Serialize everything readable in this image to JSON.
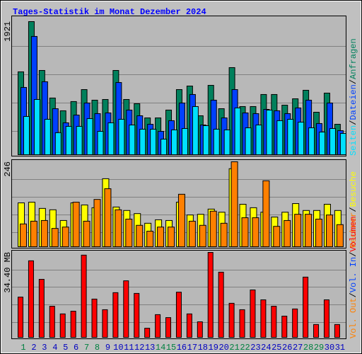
{
  "legend_separator": "/",
  "chart_data": [
    {
      "type": "bar",
      "title": "Tages-Statistik im Monat Dezember 2024",
      "ylim": [
        0,
        1921
      ],
      "yticks": [
        1921
      ],
      "series": [
        {
          "name": "Anfragen",
          "color": "#00805c",
          "values": [
            1196,
            1921,
            1216,
            818,
            634,
            767,
            940,
            787,
            797,
            1216,
            797,
            736,
            531,
            531,
            644,
            940,
            991,
            562,
            1001,
            664,
            1257,
            695,
            695,
            869,
            869,
            715,
            807,
            930,
            613,
            889,
            439
          ]
        },
        {
          "name": "Dateien",
          "color": "#0040ff",
          "values": [
            971,
            1707,
            1053,
            664,
            460,
            572,
            746,
            593,
            603,
            1042,
            644,
            562,
            439,
            337,
            491,
            746,
            869,
            429,
            787,
            531,
            940,
            603,
            593,
            654,
            634,
            593,
            675,
            787,
            450,
            746,
            347
          ]
        },
        {
          "name": "Seiten",
          "color": "#00e0ff",
          "values": [
            552,
            797,
            511,
            317,
            409,
            409,
            521,
            337,
            460,
            511,
            429,
            368,
            368,
            225,
            358,
            378,
            695,
            419,
            368,
            358,
            675,
            388,
            429,
            644,
            491,
            511,
            470,
            388,
            327,
            378,
            307
          ]
        }
      ]
    },
    {
      "type": "bar",
      "ylim": [
        0,
        246
      ],
      "yticks": [
        246
      ],
      "series": [
        {
          "name": "Besuche",
          "color": "#ffff00",
          "values": [
            127,
            129,
            111,
            107,
            76,
            127,
            121,
            113,
            197,
            115,
            105,
            96,
            68,
            78,
            76,
            129,
            92,
            94,
            109,
            100,
            226,
            123,
            113,
            100,
            86,
            100,
            125,
            105,
            105,
            123,
            105
          ]
        },
        {
          "name": "Rechner",
          "color": "#ff8000",
          "values": [
            66,
            74,
            76,
            53,
            57,
            129,
            74,
            137,
            168,
            107,
            80,
            62,
            45,
            57,
            57,
            152,
            74,
            62,
            103,
            68,
            246,
            84,
            84,
            191,
            59,
            76,
            94,
            94,
            80,
            92,
            64
          ]
        }
      ]
    },
    {
      "type": "bar",
      "ylim": [
        0,
        34.4
      ],
      "yticks": [
        {
          "value": 34.4,
          "label": "34.40 MB"
        }
      ],
      "categories": [
        "1",
        "2",
        "3",
        "4",
        "5",
        "6",
        "7",
        "8",
        "9",
        "10",
        "11",
        "12",
        "13",
        "14",
        "15",
        "16",
        "17",
        "18",
        "19",
        "20",
        "21",
        "22",
        "23",
        "24",
        "25",
        "26",
        "27",
        "28",
        "29",
        "30",
        "31"
      ],
      "category_colors": [
        "#008040",
        "#0000c0",
        "#0000c0",
        "#0000c0",
        "#0000c0",
        "#0000c0",
        "#008040",
        "#008040",
        "#0000c0",
        "#0000c0",
        "#0000c0",
        "#0000c0",
        "#0000c0",
        "#008040",
        "#008040",
        "#0000c0",
        "#0000c0",
        "#0000c0",
        "#0000c0",
        "#0000c0",
        "#008040",
        "#008040",
        "#0000c0",
        "#0000c0",
        "#0000c0",
        "#0000c0",
        "#0000c0",
        "#008040",
        "#008040",
        "#0000c0",
        "#0000c0"
      ],
      "series": [
        {
          "name": "Volumen",
          "color": "#ff0000",
          "values": [
            16.3,
            31.0,
            23.5,
            12.6,
            9.5,
            10.6,
            33.3,
            15.5,
            11.2,
            18.1,
            22.9,
            17.8,
            3.7,
            9.2,
            8.0,
            18.3,
            9.5,
            6.3,
            34.4,
            26.4,
            13.8,
            11.2,
            19.2,
            15.2,
            12.6,
            8.6,
            11.5,
            24.4,
            5.2,
            15.2,
            5.2
          ]
        },
        {
          "name": "Vol. In",
          "color": "#0040ff"
        },
        {
          "name": "Vol. Out",
          "color": "#ff8000"
        }
      ]
    }
  ]
}
